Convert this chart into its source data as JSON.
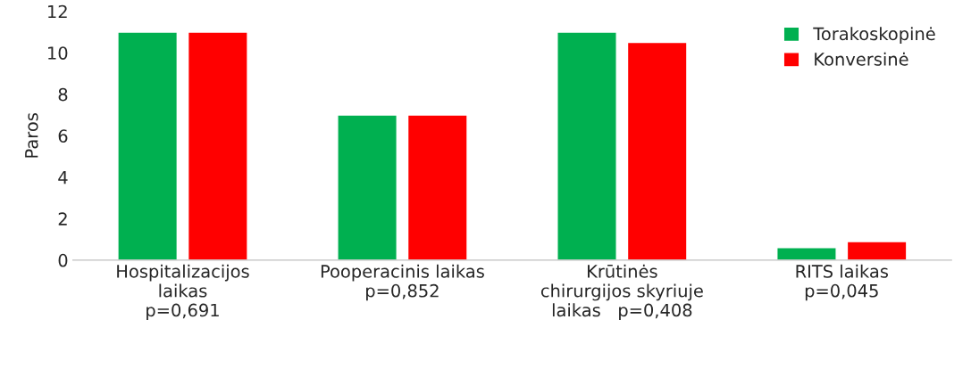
{
  "chart_data": {
    "type": "bar",
    "ylabel": "Paros",
    "categories": [
      "Hospitalizacijos\nlaikas\np=0,691",
      "Pooperacinis laikas\np=0,852",
      "Krūtinės\nchirurgijos skyriuje\nlaikas   p=0,408",
      "RITS laikas\np=0,045"
    ],
    "series": [
      {
        "name": "Torakoskopinė",
        "color": "#00b050",
        "values": [
          11,
          7,
          11,
          0.6
        ]
      },
      {
        "name": "Konversinė",
        "color": "#ff0000",
        "values": [
          11,
          7,
          10.5,
          0.9
        ]
      }
    ],
    "ylim": [
      0,
      12
    ],
    "yticks": [
      0,
      2,
      4,
      6,
      8,
      10,
      12
    ],
    "grid": false,
    "legend": "top right"
  }
}
